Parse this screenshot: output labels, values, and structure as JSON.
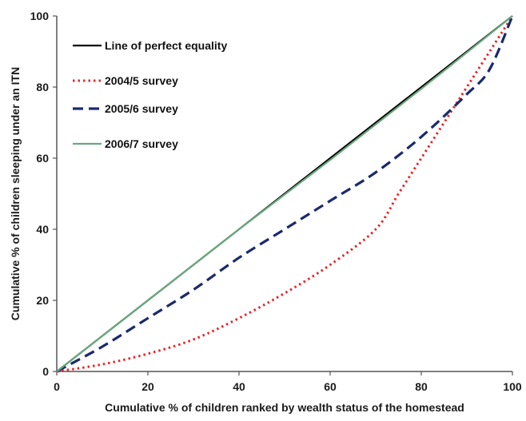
{
  "chart_data": {
    "type": "line",
    "xlabel": "Cumulative % of children ranked by wealth status of the homestead",
    "ylabel": "Cumulative % of children sleeping under an ITN",
    "xlim": [
      0,
      100
    ],
    "ylim": [
      0,
      100
    ],
    "xticks": [
      0,
      20,
      40,
      60,
      80,
      100
    ],
    "yticks": [
      0,
      20,
      40,
      60,
      80,
      100
    ],
    "grid": false,
    "legend_position": "top-left",
    "series": [
      {
        "name": "Line of perfect equality",
        "color": "#000000",
        "style": "solid",
        "x": [
          0,
          100
        ],
        "y": [
          0,
          100
        ]
      },
      {
        "name": "2004/5 survey",
        "color": "#e8262b",
        "style": "dotted",
        "x": [
          0,
          10,
          20,
          30,
          40,
          50,
          60,
          70,
          75,
          80,
          85,
          90,
          95,
          100
        ],
        "y": [
          0,
          2,
          5,
          9,
          15,
          22,
          30,
          40,
          50,
          60,
          70,
          80,
          90,
          100
        ]
      },
      {
        "name": "2005/6 survey",
        "color": "#1a2a6c",
        "style": "dashed",
        "x": [
          0,
          10,
          20,
          30,
          40,
          50,
          60,
          70,
          80,
          90,
          95,
          100
        ],
        "y": [
          0,
          7,
          15,
          23,
          32,
          40,
          48,
          56,
          66,
          78,
          85,
          100
        ]
      },
      {
        "name": "2006/7 survey",
        "color": "#6aa87e",
        "style": "solid",
        "x": [
          0,
          20,
          40,
          60,
          80,
          100
        ],
        "y": [
          0,
          20,
          40,
          59.5,
          79.5,
          100
        ]
      }
    ]
  }
}
